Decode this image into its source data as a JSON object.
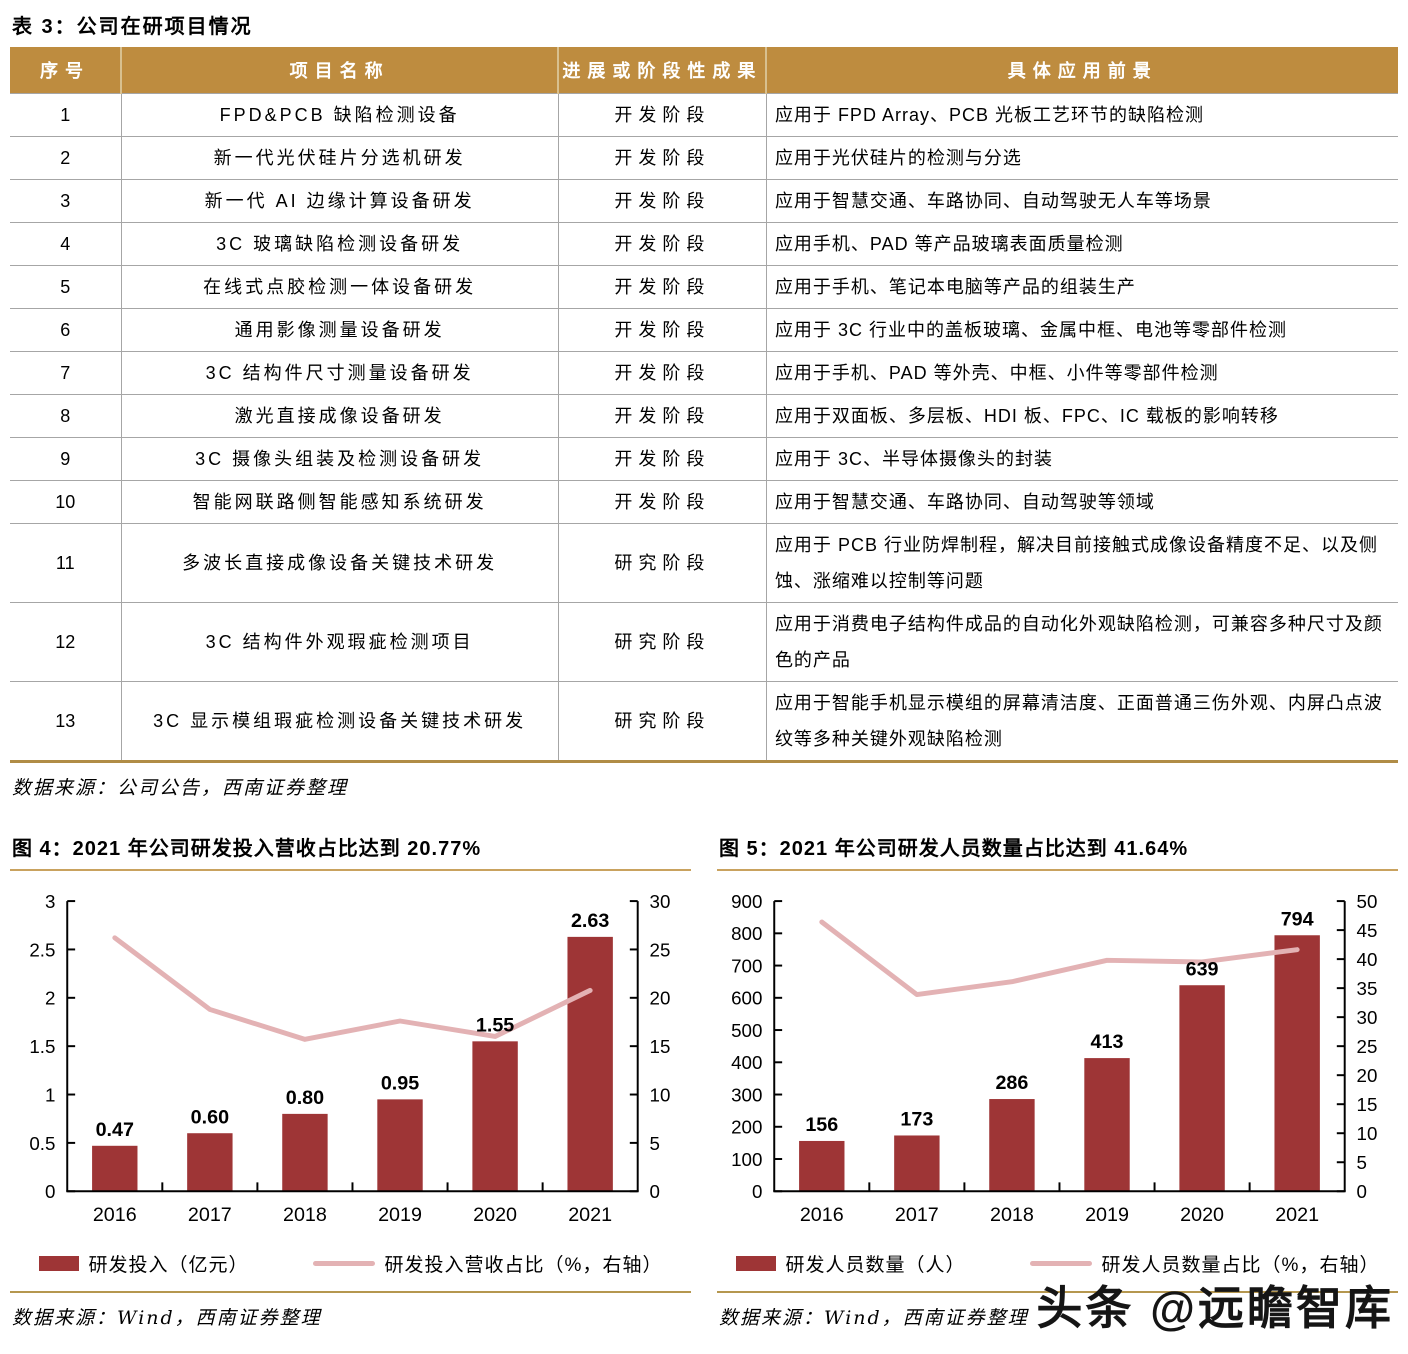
{
  "table": {
    "title": "表 3：公司在研项目情况",
    "columns": [
      "序号",
      "项目名称",
      "进展或阶段性成果",
      "具体应用前景"
    ],
    "rows": [
      {
        "num": "1",
        "name": "FPD&PCB 缺陷检测设备",
        "stage": "开发阶段",
        "app": "应用于 FPD Array、PCB 光板工艺环节的缺陷检测"
      },
      {
        "num": "2",
        "name": "新一代光伏硅片分选机研发",
        "stage": "开发阶段",
        "app": "应用于光伏硅片的检测与分选"
      },
      {
        "num": "3",
        "name": "新一代 AI 边缘计算设备研发",
        "stage": "开发阶段",
        "app": "应用于智慧交通、车路协同、自动驾驶无人车等场景"
      },
      {
        "num": "4",
        "name": "3C 玻璃缺陷检测设备研发",
        "stage": "开发阶段",
        "app": "应用手机、PAD 等产品玻璃表面质量检测"
      },
      {
        "num": "5",
        "name": "在线式点胶检测一体设备研发",
        "stage": "开发阶段",
        "app": "应用于手机、笔记本电脑等产品的组装生产"
      },
      {
        "num": "6",
        "name": "通用影像测量设备研发",
        "stage": "开发阶段",
        "app": "应用于 3C 行业中的盖板玻璃、金属中框、电池等零部件检测"
      },
      {
        "num": "7",
        "name": "3C 结构件尺寸测量设备研发",
        "stage": "开发阶段",
        "app": "应用于手机、PAD 等外壳、中框、小件等零部件检测"
      },
      {
        "num": "8",
        "name": "激光直接成像设备研发",
        "stage": "开发阶段",
        "app": "应用于双面板、多层板、HDI 板、FPC、IC 载板的影响转移"
      },
      {
        "num": "9",
        "name": "3C 摄像头组装及检测设备研发",
        "stage": "开发阶段",
        "app": "应用于 3C、半导体摄像头的封装"
      },
      {
        "num": "10",
        "name": "智能网联路侧智能感知系统研发",
        "stage": "开发阶段",
        "app": "应用于智慧交通、车路协同、自动驾驶等领域"
      },
      {
        "num": "11",
        "name": "多波长直接成像设备关键技术研发",
        "stage": "研究阶段",
        "app": "应用于 PCB 行业防焊制程，解决目前接触式成像设备精度不足、以及侧蚀、涨缩难以控制等问题"
      },
      {
        "num": "12",
        "name": "3C 结构件外观瑕疵检测项目",
        "stage": "研究阶段",
        "app": "应用于消费电子结构件成品的自动化外观缺陷检测，可兼容多种尺寸及颜色的产品"
      },
      {
        "num": "13",
        "name": "3C 显示模组瑕疵检测设备关键技术研发",
        "stage": "研究阶段",
        "app": "应用于智能手机显示模组的屏幕清洁度、正面普通三伤外观、内屏凸点波纹等多种关键外观缺陷检测"
      }
    ],
    "source": "数据来源：公司公告，西南证券整理"
  },
  "chart_data": [
    {
      "type": "bar+line",
      "title": "图 4：2021 年公司研发投入营收占比达到 20.77%",
      "categories": [
        "2016",
        "2017",
        "2018",
        "2019",
        "2020",
        "2021"
      ],
      "series": [
        {
          "name": "研发投入（亿元）",
          "type": "bar",
          "axis": "left",
          "values": [
            0.47,
            0.6,
            0.8,
            0.95,
            1.55,
            2.63
          ],
          "labels": [
            "0.47",
            "0.60",
            "0.80",
            "0.95",
            "1.55",
            "2.63"
          ],
          "color": "#9E3536"
        },
        {
          "name": "研发投入营收占比（%，右轴）",
          "type": "line",
          "axis": "right",
          "values": [
            26.2,
            18.8,
            15.7,
            17.6,
            16.0,
            20.77
          ],
          "color": "#E3B2B4"
        }
      ],
      "left_axis": {
        "min": 0,
        "max": 3,
        "ticks": [
          "0",
          "0.5",
          "1",
          "1.5",
          "2",
          "2.5",
          "3"
        ]
      },
      "right_axis": {
        "min": 0,
        "max": 30,
        "ticks": [
          "0",
          "5",
          "10",
          "15",
          "20",
          "25",
          "30"
        ]
      },
      "legend_position": "bottom",
      "grid": false,
      "source": "数据来源：Wind，西南证券整理"
    },
    {
      "type": "bar+line",
      "title": "图 5：2021 年公司研发人员数量占比达到 41.64%",
      "categories": [
        "2016",
        "2017",
        "2018",
        "2019",
        "2020",
        "2021"
      ],
      "series": [
        {
          "name": "研发人员数量（人）",
          "type": "bar",
          "axis": "left",
          "values": [
            156,
            173,
            286,
            413,
            639,
            794
          ],
          "labels": [
            "156",
            "173",
            "286",
            "413",
            "639",
            "794"
          ],
          "color": "#9E3536"
        },
        {
          "name": "研发人员数量占比（%，右轴）",
          "type": "line",
          "axis": "right",
          "values": [
            46.4,
            33.9,
            36.1,
            39.8,
            39.5,
            41.64
          ],
          "color": "#E3B2B4"
        }
      ],
      "left_axis": {
        "min": 0,
        "max": 900,
        "ticks": [
          "0",
          "100",
          "200",
          "300",
          "400",
          "500",
          "600",
          "700",
          "800",
          "900"
        ]
      },
      "right_axis": {
        "min": 0,
        "max": 50,
        "ticks": [
          "0",
          "5",
          "10",
          "15",
          "20",
          "25",
          "30",
          "35",
          "40",
          "45",
          "50"
        ]
      },
      "legend_position": "bottom",
      "grid": false,
      "source": "数据来源：Wind，西南证券整理"
    }
  ],
  "watermark": "头条 @远瞻智库",
  "colors": {
    "header_gold": "#BE8C3F",
    "bar_red": "#9E3536",
    "line_pink": "#E3B2B4",
    "rule_gold": "#C9A25E",
    "table_bottom_gold": "#B08C46",
    "border_gray": "#A6A6A6"
  }
}
